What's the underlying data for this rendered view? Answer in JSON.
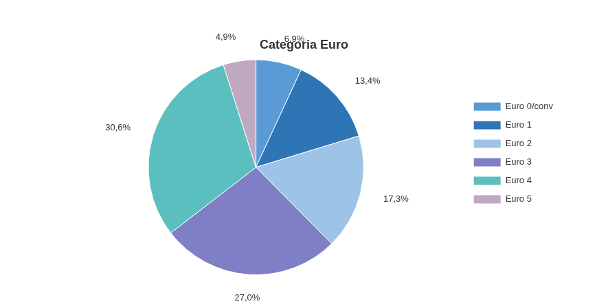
{
  "chart_data": {
    "type": "pie",
    "title": "Categoria Euro",
    "categories": [
      "Euro 0/conv",
      "Euro 1",
      "Euro 2",
      "Euro 3",
      "Euro 4",
      "Euro 5"
    ],
    "values": [
      6.9,
      13.4,
      17.3,
      27.0,
      30.6,
      4.9
    ],
    "value_labels": [
      "6,9%",
      "13,4%",
      "17,3%",
      "27,0%",
      "30,6%",
      "4,9%"
    ],
    "colors": [
      "#5B9BD5",
      "#2E75B6",
      "#9DC3E6",
      "#7F7FC5",
      "#5BBFBF",
      "#C0A8C0"
    ],
    "data_labels": true,
    "legend": "right"
  }
}
